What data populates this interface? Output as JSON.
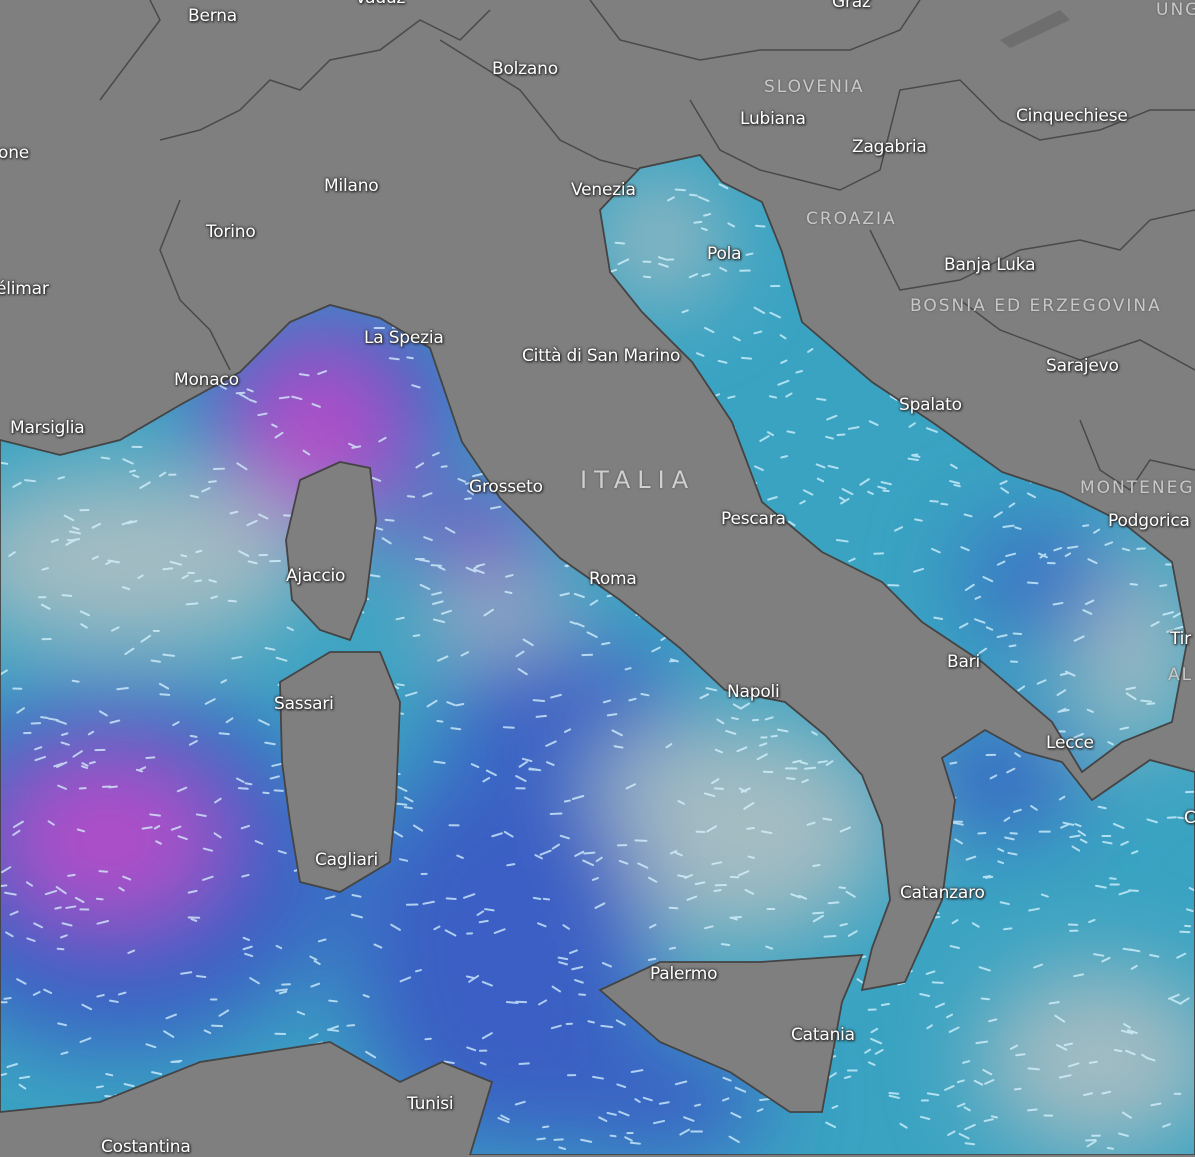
{
  "map": {
    "colors": {
      "land": "#7f7f7f",
      "border": "#4a4a4a",
      "sea_base": "#3aa3c2",
      "sea_low": "#a4bcc2",
      "sea_mid": "#3a5ec4",
      "sea_high": "#b24ec8",
      "wind_streak": "#d8f4ff"
    },
    "cities": [
      "Berna",
      "Bolzano",
      "Graz",
      "Lubiana",
      "Zagabria",
      "Cinquechiese",
      "Milano",
      "Venezia",
      "Torino",
      "Pola",
      "Banja Luka",
      "Sarajevo",
      "La Spezia",
      "Città di San Marino",
      "Monaco",
      "Marsiglia",
      "Spalato",
      "Grosseto",
      "Pescara",
      "Podgorica",
      "Ajaccio",
      "Roma",
      "Bari",
      "Tir",
      "Napoli",
      "Sassari",
      "Lecce",
      "Cagliari",
      "Catanzaro",
      "Palermo",
      "Catania",
      "Tunisi",
      "Costantina",
      "one",
      "élimar",
      "Vaduz",
      "C"
    ],
    "countries": [
      "SLOVENIA",
      "CROAZIA",
      "BOSNIA ED ERZEGOVINA",
      "MONTENEG",
      "UNG",
      "AL",
      "ITALIA"
    ]
  }
}
